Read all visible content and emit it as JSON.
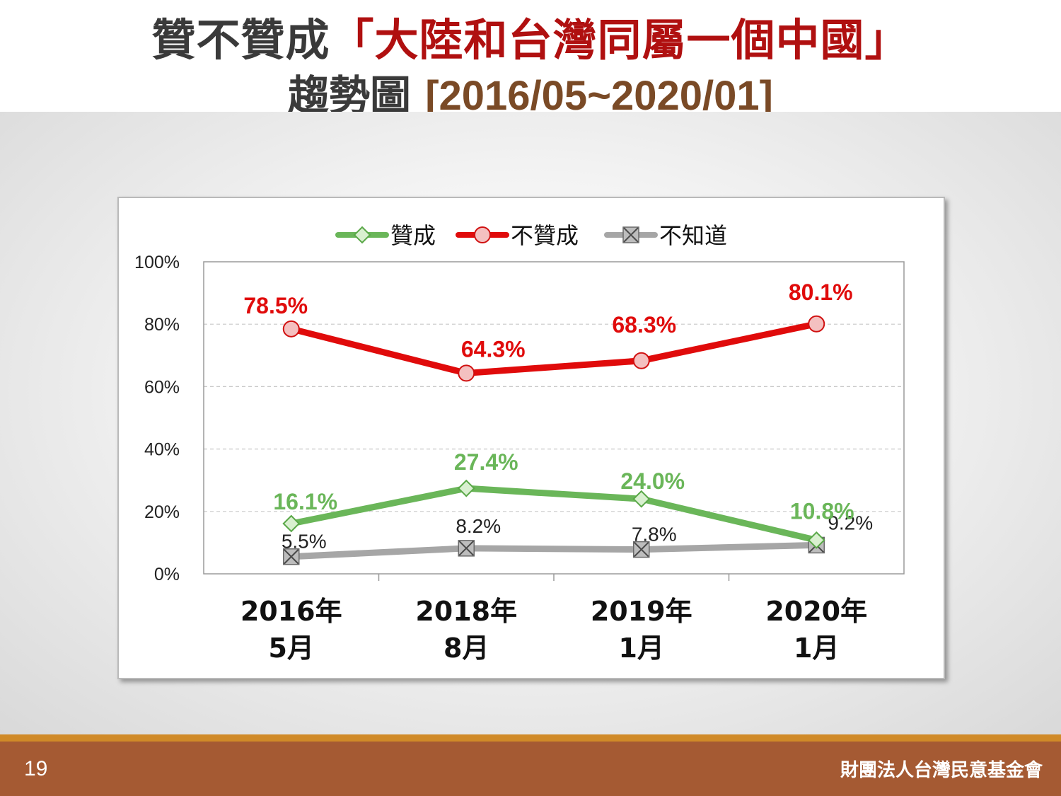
{
  "title": {
    "line1_prefix": "贊不贊成",
    "line1_highlight": "「大陸和台灣同屬一個中國」",
    "line2_prefix": "趨勢圖 ",
    "line2_range": "[2016/05~2020/01]"
  },
  "chart_data": {
    "type": "line",
    "categories": [
      [
        "2016年",
        "5月"
      ],
      [
        "2018年",
        "8月"
      ],
      [
        "2019年",
        "1月"
      ],
      [
        "2020年",
        "1月"
      ]
    ],
    "ylim": [
      0,
      100
    ],
    "yticks": [
      0,
      20,
      40,
      60,
      80,
      100
    ],
    "ytick_labels": [
      "0%",
      "20%",
      "40%",
      "60%",
      "80%",
      "100%"
    ],
    "grid": true,
    "legend_position": "top",
    "series": [
      {
        "name": "贊成",
        "values": [
          16.1,
          27.4,
          24.0,
          10.8
        ],
        "labels": [
          "16.1%",
          "27.4%",
          "24.0%",
          "10.8%"
        ],
        "color": "#6ab659",
        "marker": "diamond",
        "label_bold": true
      },
      {
        "name": "不贊成",
        "values": [
          78.5,
          64.3,
          68.3,
          80.1
        ],
        "labels": [
          "78.5%",
          "64.3%",
          "68.3%",
          "80.1%"
        ],
        "color": "#e00b0b",
        "marker": "circle",
        "label_bold": true
      },
      {
        "name": "不知道",
        "values": [
          5.5,
          8.2,
          7.8,
          9.2
        ],
        "labels": [
          "5.5%",
          "8.2%",
          "7.8%",
          "9.2%"
        ],
        "color": "#a6a6a6",
        "marker": "x-square",
        "label_bold": false
      }
    ]
  },
  "footer": {
    "page_number": "19",
    "organization": "財團法人台灣民意基金會"
  }
}
